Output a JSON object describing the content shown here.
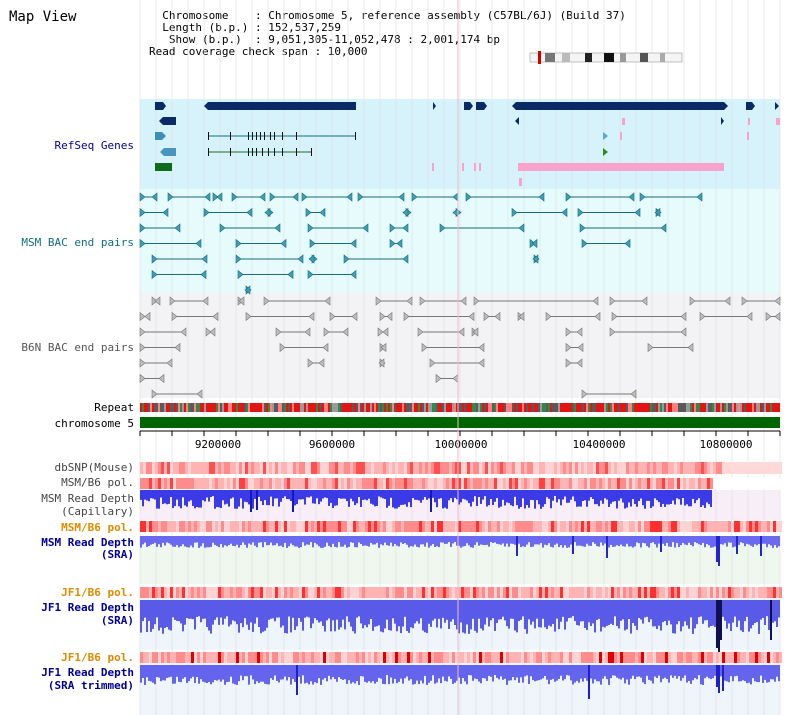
{
  "view_title": "Map View",
  "info": {
    "chromosome_line": "  Chromosome    : Chromosome 5, reference assembly (C57BL/6J) (Build 37)",
    "length_line": "  Length (b.p.) : 152,537,259",
    "show_line": "   Show (b.p.)  : 9,051,305-11,052,478 : 2,001,174 bp",
    "span_line": "Read coverage check span : 10,000"
  },
  "tracks": {
    "refseq": "RefSeq Genes",
    "msm_bac": "MSM BAC end pairs",
    "b6n_bac": "B6N BAC end pairs",
    "repeat": "Repeat",
    "chromosome": "chromosome 5",
    "dbsnp": "dbSNP(Mouse)",
    "msm_b6_pol_1": "MSM/B6 pol.",
    "msm_depth_cap_1": "MSM Read Depth",
    "msm_depth_cap_2": "(Capillary)",
    "msm_b6_pol_2": "MSM/B6 pol.",
    "msm_depth_sra_1": "MSM Read Depth",
    "msm_depth_sra_2": "(SRA)",
    "jf1_pol_1": "JF1/B6 pol.",
    "jf1_depth_1": "JF1 Read Depth",
    "jf1_depth_2": "(SRA)",
    "jf1_pol_2": "JF1/B6 pol.",
    "jf1_trim_1": "JF1 Read Depth",
    "jf1_trim_2": "(SRA trimmed)"
  },
  "axis": {
    "ticks": [
      "9200000",
      "9600000",
      "10000000",
      "10400000",
      "10800000"
    ]
  },
  "colors": {
    "refseq_bg": "#d6f2fb",
    "msm_bac_bg": "#e6fbfb",
    "b6n_bac_bg": "#f3f3f6",
    "gene_navy": "#0a2a66",
    "gene_pink": "#f7a3cc",
    "msm_pair": "#1b6a7e",
    "b6n_pair": "#777777",
    "chromosome_green": "#006400",
    "depth_blue": "#2d2ddc",
    "pol_red": "#ff3b3b",
    "label_blue": "#000099",
    "label_orange": "#e08a00",
    "label_teal": "#0f6d80"
  }
}
